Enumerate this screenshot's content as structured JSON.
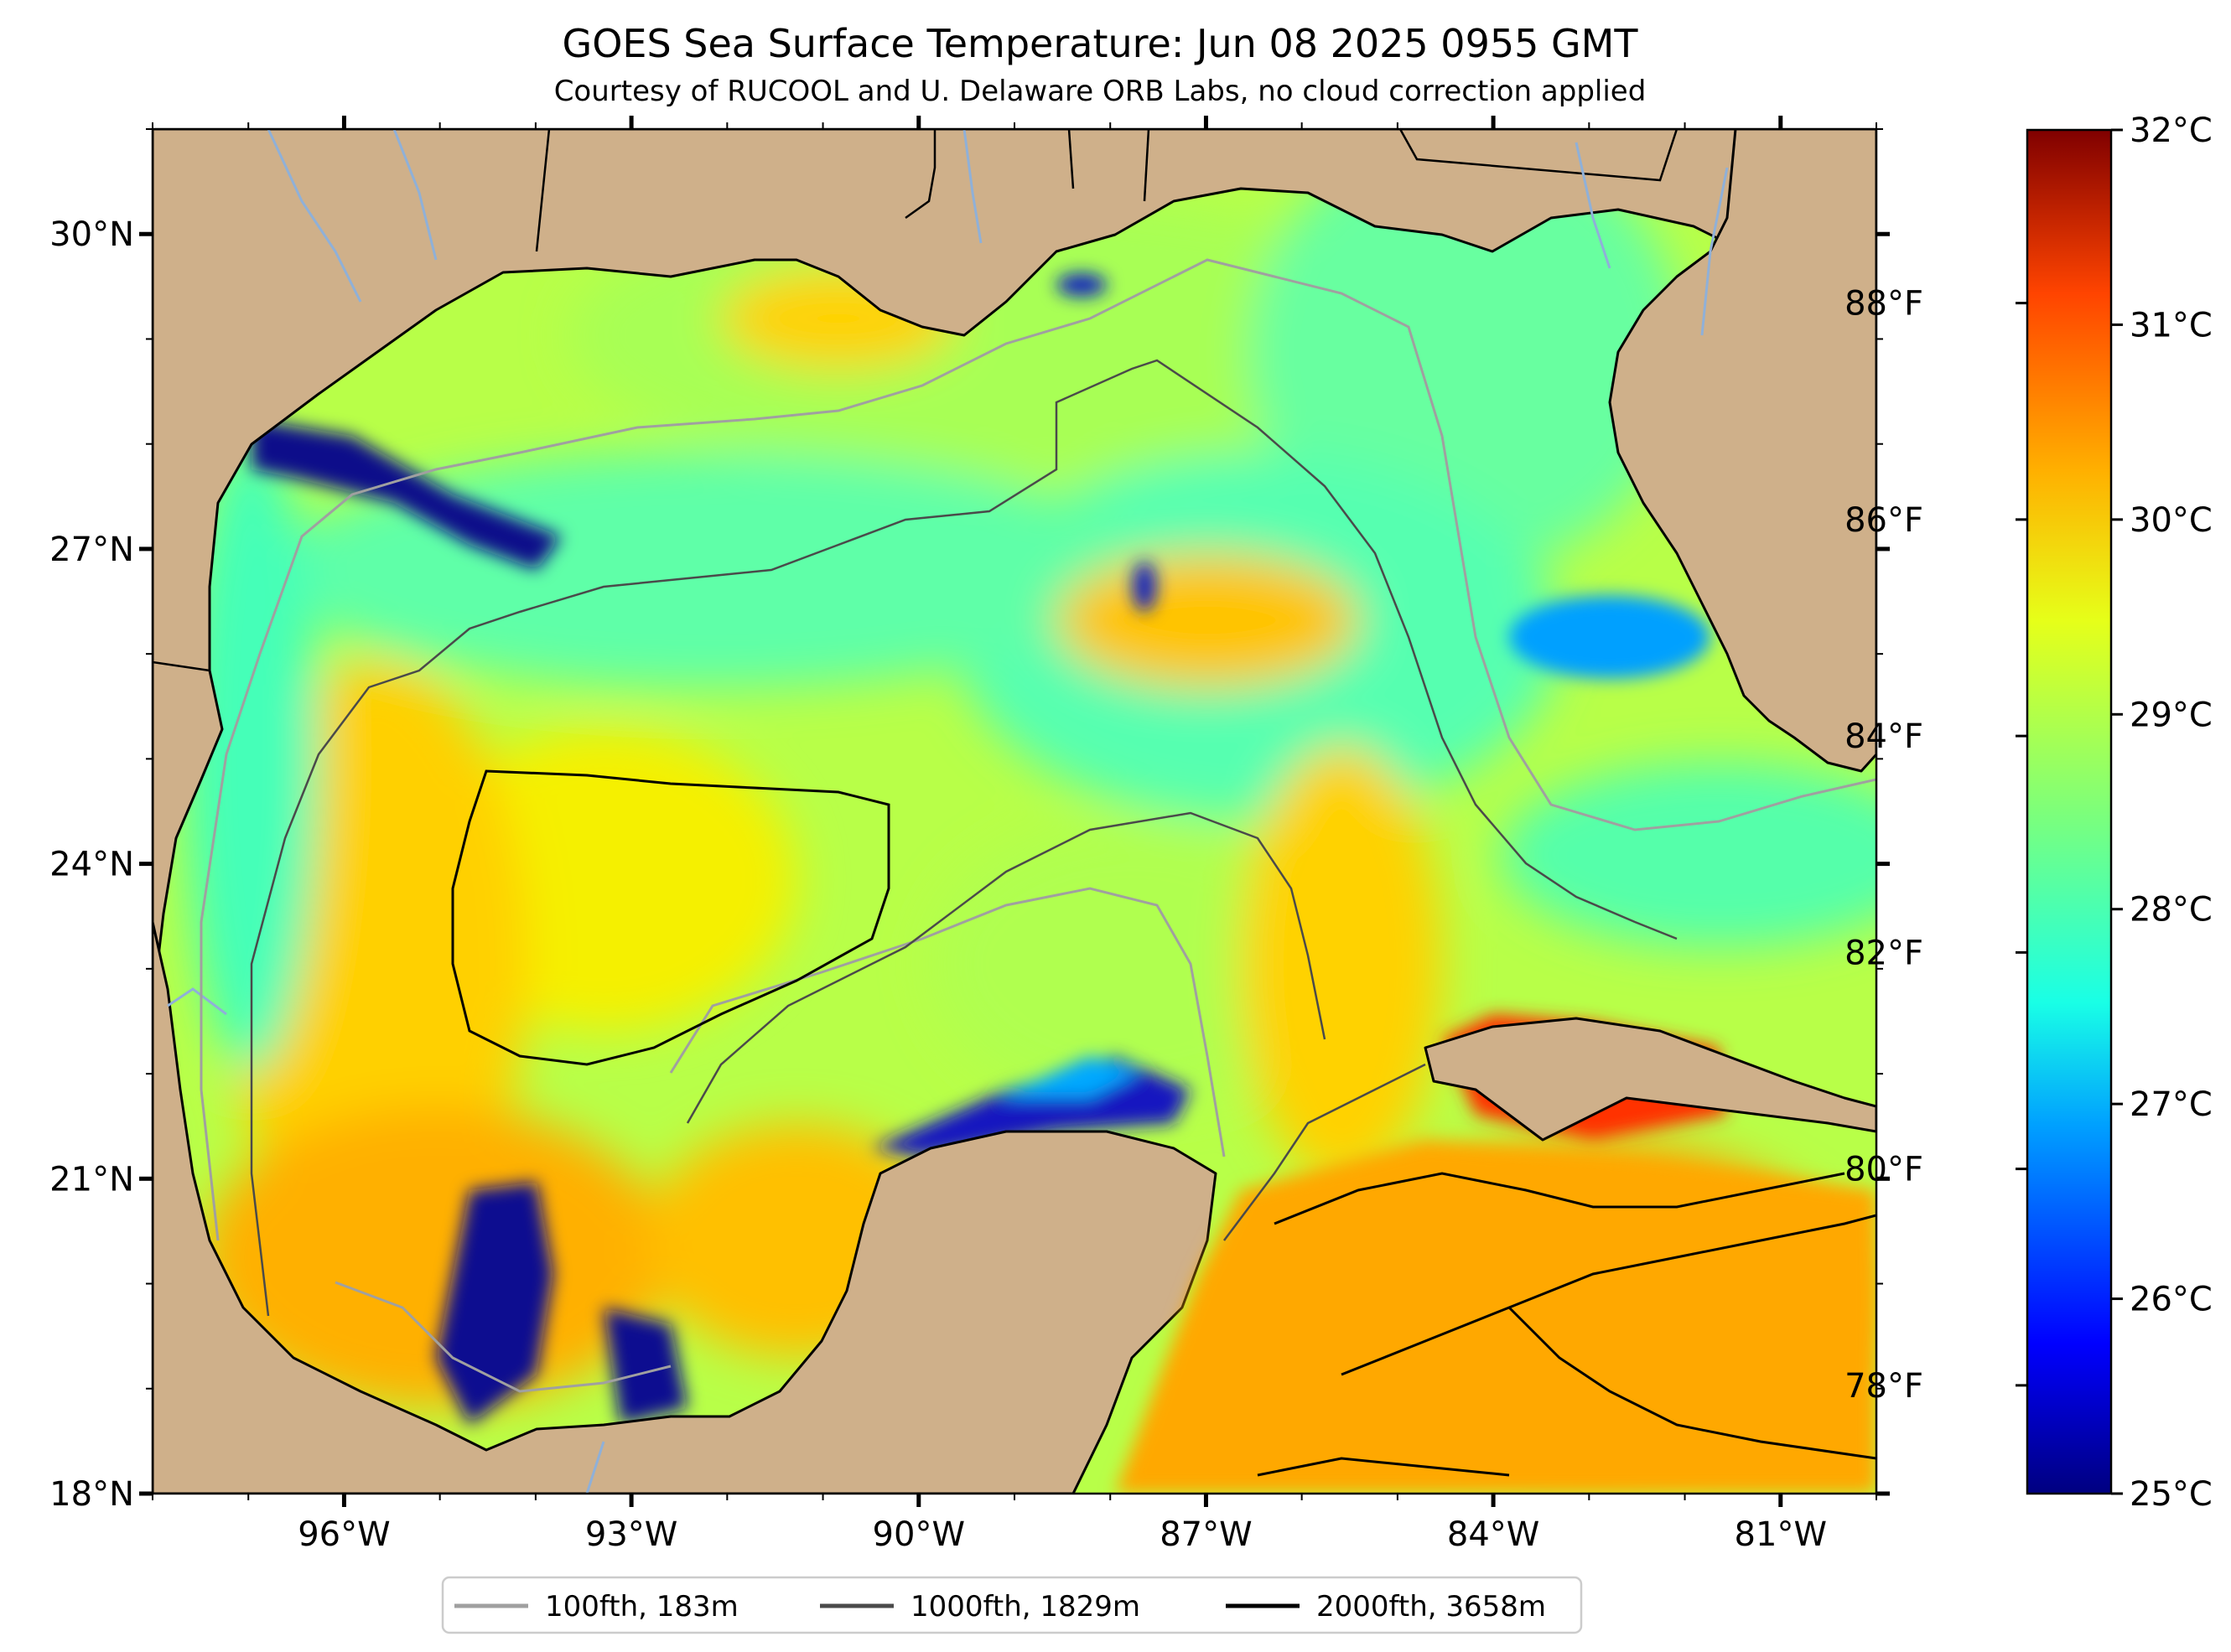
{
  "title": "GOES Sea Surface Temperature: Jun 08 2025 0955 GMT",
  "subtitle": "Courtesy of RUCOOL and U. Delaware ORB Labs, no cloud correction applied",
  "map": {
    "lon_range": [
      -98,
      -80
    ],
    "lat_range": [
      18,
      31
    ],
    "lon_ticks": [
      {
        "value": -96,
        "label": "96°W"
      },
      {
        "value": -93,
        "label": "93°W"
      },
      {
        "value": -90,
        "label": "90°W"
      },
      {
        "value": -87,
        "label": "87°W"
      },
      {
        "value": -84,
        "label": "84°W"
      },
      {
        "value": -81,
        "label": "81°W"
      }
    ],
    "lat_ticks": [
      {
        "value": 30,
        "label": "30°N"
      },
      {
        "value": 27,
        "label": "27°N"
      },
      {
        "value": 24,
        "label": "24°N"
      },
      {
        "value": 21,
        "label": "21°N"
      },
      {
        "value": 18,
        "label": "18°N"
      }
    ],
    "land_color": "#cfb08a",
    "river_color": "#8fb0d8"
  },
  "colorbar": {
    "range_c": [
      25,
      32
    ],
    "celsius_ticks": [
      {
        "value": 32,
        "label": "32°C"
      },
      {
        "value": 31,
        "label": "31°C"
      },
      {
        "value": 30,
        "label": "30°C"
      },
      {
        "value": 29,
        "label": "29°C"
      },
      {
        "value": 28,
        "label": "28°C"
      },
      {
        "value": 27,
        "label": "27°C"
      },
      {
        "value": 26,
        "label": "26°C"
      },
      {
        "value": 25,
        "label": "25°C"
      }
    ],
    "fahrenheit_ticks": [
      {
        "value": 88,
        "label": "88°F"
      },
      {
        "value": 86,
        "label": "86°F"
      },
      {
        "value": 84,
        "label": "84°F"
      },
      {
        "value": 82,
        "label": "82°F"
      },
      {
        "value": 80,
        "label": "80°F"
      },
      {
        "value": 78,
        "label": "78°F"
      }
    ],
    "colormap": "jet",
    "colors": [
      "#000080",
      "#0000ff",
      "#00a0ff",
      "#19ffe6",
      "#7dff7a",
      "#e6ff19",
      "#ffb000",
      "#ff4400",
      "#800000"
    ]
  },
  "legend": {
    "entries": [
      {
        "label": "100fth, 183m",
        "color": "#a0a0a0"
      },
      {
        "label": "1000fth, 1829m",
        "color": "#4a4a4a"
      },
      {
        "label": "2000fth, 3658m",
        "color": "#000000"
      }
    ],
    "placement": "bottom-center"
  }
}
